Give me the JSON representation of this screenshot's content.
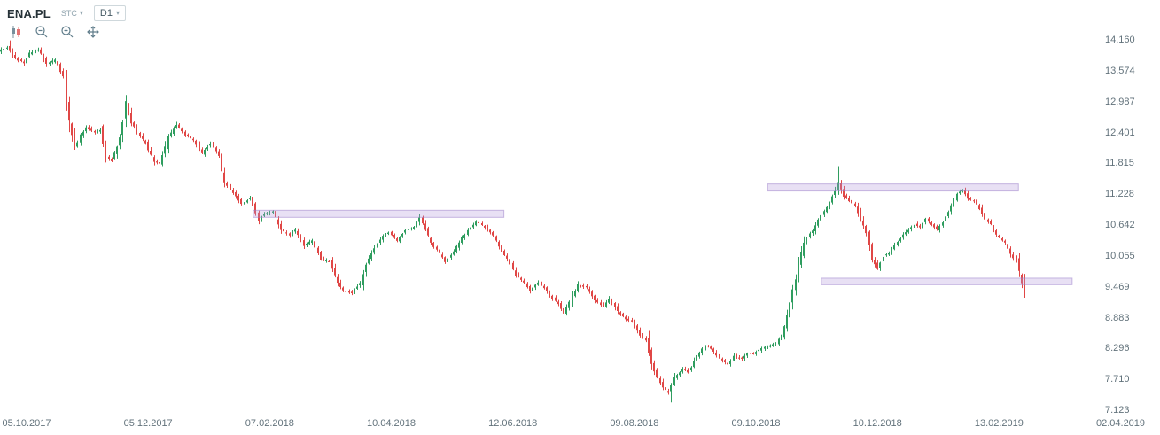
{
  "header": {
    "symbol": "ENA.PL",
    "exchange": "STC",
    "timeframe": "D1"
  },
  "glyphs": {
    "caret_down": "▾"
  },
  "toolbar": {
    "icons": [
      "candlestick-type-icon",
      "zoom-out-icon",
      "zoom-in-icon",
      "pan-icon"
    ]
  },
  "chart_data": {
    "type": "candlestick",
    "symbol": "ENA.PL",
    "timeframe": "D1",
    "up_color": "#2f9d5f",
    "down_color": "#e04746",
    "zone_fill": "rgba(178,152,220,0.30)",
    "zone_border": "rgba(154,124,200,0.45)",
    "y_axis": {
      "ticks": [
        "14.160",
        "13.574",
        "12.987",
        "12.401",
        "11.815",
        "11.228",
        "10.642",
        "10.055",
        "9.469",
        "8.883",
        "8.296",
        "7.710",
        "7.123"
      ],
      "min": 7.123,
      "max": 14.16
    },
    "x_axis": {
      "ticks": [
        {
          "label": "05.10.2017",
          "day": 0
        },
        {
          "label": "05.12.2017",
          "day": 43
        },
        {
          "label": "07.02.2018",
          "day": 86
        },
        {
          "label": "10.04.2018",
          "day": 129
        },
        {
          "label": "12.06.2018",
          "day": 172
        },
        {
          "label": "09.08.2018",
          "day": 215
        },
        {
          "label": "09.10.2018",
          "day": 258
        },
        {
          "label": "10.12.2018",
          "day": 301
        },
        {
          "label": "13.02.2019",
          "day": 344
        },
        {
          "label": "02.04.2019",
          "day": 387
        }
      ]
    },
    "day_range": [
      -9,
      353
    ],
    "price_path": [
      [
        -9,
        13.95
      ],
      [
        -6,
        14.02
      ],
      [
        -3,
        13.8
      ],
      [
        0,
        13.72
      ],
      [
        2,
        13.9
      ],
      [
        5,
        13.98
      ],
      [
        8,
        13.7
      ],
      [
        11,
        13.78
      ],
      [
        14,
        13.45
      ],
      [
        16,
        12.55
      ],
      [
        18,
        12.1
      ],
      [
        20,
        12.35
      ],
      [
        22,
        12.5
      ],
      [
        25,
        12.4
      ],
      [
        27,
        12.45
      ],
      [
        29,
        11.95
      ],
      [
        31,
        11.85
      ],
      [
        34,
        12.3
      ],
      [
        36,
        12.95
      ],
      [
        38,
        12.6
      ],
      [
        40,
        12.4
      ],
      [
        43,
        12.2
      ],
      [
        46,
        11.85
      ],
      [
        48,
        11.8
      ],
      [
        51,
        12.3
      ],
      [
        54,
        12.55
      ],
      [
        57,
        12.35
      ],
      [
        60,
        12.25
      ],
      [
        63,
        12.0
      ],
      [
        66,
        12.2
      ],
      [
        69,
        11.95
      ],
      [
        71,
        11.45
      ],
      [
        74,
        11.25
      ],
      [
        77,
        11.05
      ],
      [
        80,
        11.15
      ],
      [
        83,
        10.75
      ],
      [
        85,
        10.85
      ],
      [
        88,
        10.9
      ],
      [
        91,
        10.55
      ],
      [
        94,
        10.45
      ],
      [
        96,
        10.55
      ],
      [
        99,
        10.25
      ],
      [
        102,
        10.35
      ],
      [
        105,
        10.0
      ],
      [
        108,
        9.95
      ],
      [
        111,
        9.55
      ],
      [
        113,
        9.4
      ],
      [
        116,
        9.35
      ],
      [
        119,
        9.55
      ],
      [
        121,
        9.9
      ],
      [
        124,
        10.2
      ],
      [
        127,
        10.45
      ],
      [
        129,
        10.5
      ],
      [
        132,
        10.35
      ],
      [
        135,
        10.55
      ],
      [
        138,
        10.6
      ],
      [
        140,
        10.8
      ],
      [
        142,
        10.55
      ],
      [
        144,
        10.3
      ],
      [
        147,
        10.1
      ],
      [
        149,
        9.95
      ],
      [
        152,
        10.15
      ],
      [
        155,
        10.4
      ],
      [
        158,
        10.6
      ],
      [
        160,
        10.7
      ],
      [
        163,
        10.6
      ],
      [
        166,
        10.45
      ],
      [
        169,
        10.15
      ],
      [
        171,
        10.0
      ],
      [
        174,
        9.7
      ],
      [
        177,
        9.55
      ],
      [
        179,
        9.4
      ],
      [
        182,
        9.55
      ],
      [
        184,
        9.45
      ],
      [
        186,
        9.3
      ],
      [
        189,
        9.15
      ],
      [
        191,
        8.95
      ],
      [
        194,
        9.3
      ],
      [
        196,
        9.5
      ],
      [
        199,
        9.45
      ],
      [
        202,
        9.2
      ],
      [
        205,
        9.1
      ],
      [
        207,
        9.25
      ],
      [
        210,
        9.0
      ],
      [
        213,
        8.85
      ],
      [
        215,
        8.8
      ],
      [
        218,
        8.55
      ],
      [
        220,
        8.45
      ],
      [
        222,
        8.0
      ],
      [
        224,
        7.75
      ],
      [
        226,
        7.55
      ],
      [
        228,
        7.45
      ],
      [
        230,
        7.75
      ],
      [
        233,
        7.9
      ],
      [
        235,
        7.85
      ],
      [
        238,
        8.15
      ],
      [
        241,
        8.35
      ],
      [
        243,
        8.3
      ],
      [
        246,
        8.1
      ],
      [
        249,
        8.0
      ],
      [
        251,
        8.15
      ],
      [
        254,
        8.1
      ],
      [
        256,
        8.2
      ],
      [
        258,
        8.2
      ],
      [
        261,
        8.3
      ],
      [
        264,
        8.35
      ],
      [
        266,
        8.4
      ],
      [
        268,
        8.55
      ],
      [
        270,
        8.9
      ],
      [
        272,
        9.4
      ],
      [
        274,
        9.9
      ],
      [
        276,
        10.3
      ],
      [
        279,
        10.55
      ],
      [
        281,
        10.75
      ],
      [
        283,
        10.9
      ],
      [
        285,
        11.05
      ],
      [
        287,
        11.3
      ],
      [
        288,
        11.45
      ],
      [
        290,
        11.2
      ],
      [
        292,
        11.1
      ],
      [
        294,
        11.0
      ],
      [
        296,
        10.75
      ],
      [
        298,
        10.5
      ],
      [
        300,
        10.0
      ],
      [
        302,
        9.8
      ],
      [
        304,
        10.05
      ],
      [
        306,
        10.1
      ],
      [
        308,
        10.25
      ],
      [
        311,
        10.45
      ],
      [
        313,
        10.55
      ],
      [
        315,
        10.65
      ],
      [
        317,
        10.6
      ],
      [
        319,
        10.75
      ],
      [
        321,
        10.65
      ],
      [
        323,
        10.55
      ],
      [
        325,
        10.7
      ],
      [
        328,
        11.0
      ],
      [
        330,
        11.25
      ],
      [
        332,
        11.3
      ],
      [
        334,
        11.15
      ],
      [
        336,
        11.1
      ],
      [
        338,
        10.95
      ],
      [
        340,
        10.75
      ],
      [
        342,
        10.65
      ],
      [
        344,
        10.45
      ],
      [
        347,
        10.3
      ],
      [
        349,
        10.1
      ],
      [
        351,
        9.95
      ],
      [
        353,
        9.55
      ],
      [
        354,
        9.35
      ]
    ],
    "wick_events": [
      {
        "day": -6,
        "type": "high",
        "price": 14.15
      },
      {
        "day": 35,
        "type": "high",
        "price": 13.05
      },
      {
        "day": 113,
        "type": "low",
        "price": 9.18
      },
      {
        "day": 228,
        "type": "low",
        "price": 7.27
      },
      {
        "day": 287,
        "type": "high",
        "price": 11.76
      },
      {
        "day": 353,
        "type": "low",
        "price": 9.26
      }
    ],
    "zones": [
      {
        "day_start": 80,
        "day_end": 169,
        "price_low": 10.78,
        "price_high": 10.93
      },
      {
        "day_start": 262,
        "day_end": 351,
        "price_low": 11.28,
        "price_high": 11.43
      },
      {
        "day_start": 281,
        "day_end": 370,
        "price_low": 9.5,
        "price_high": 9.64
      }
    ]
  }
}
